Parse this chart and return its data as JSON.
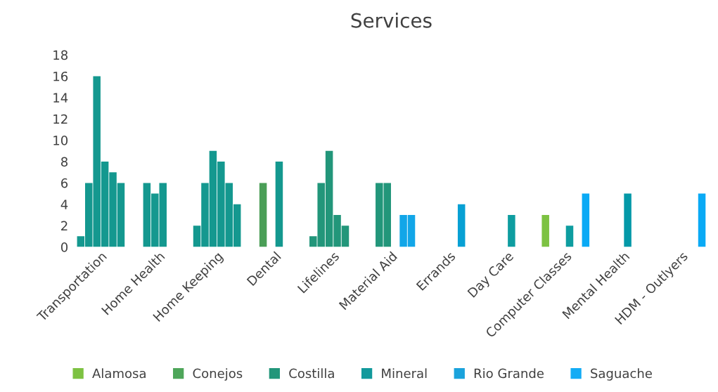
{
  "chart_data": {
    "type": "bar",
    "title": "Services",
    "categories": [
      "Transportation",
      "Home Health",
      "Home Keeping",
      "Dental",
      "Lifelines",
      "Material Aid",
      "Errands",
      "Day Care",
      "Computer Classes",
      "Mental Health",
      "HDM - Outlyers"
    ],
    "series": [
      {
        "name": "Alamosa",
        "color": "#7dc242",
        "values": [
          1,
          null,
          2,
          null,
          1,
          null,
          null,
          null,
          3,
          null,
          null
        ],
        "colors": [
          "#14988f",
          null,
          "#14988f",
          null,
          "#22967a",
          null,
          null,
          null,
          "#7dc242",
          null,
          null
        ]
      },
      {
        "name": "Conejos",
        "color": "#4ea65a",
        "values": [
          6,
          6,
          6,
          6,
          6,
          6,
          null,
          null,
          null,
          null,
          null
        ],
        "colors": [
          "#14988f",
          "#14988f",
          "#14988f",
          "#4a9e57",
          "#22967a",
          "#22967a",
          null,
          null,
          null,
          null,
          null
        ]
      },
      {
        "name": "Costilla",
        "color": "#22967a",
        "values": [
          16,
          5,
          9,
          null,
          9,
          6,
          null,
          null,
          null,
          null,
          null
        ],
        "colors": [
          "#14988f",
          "#14988f",
          "#14988f",
          null,
          "#22967a",
          "#22967a",
          null,
          null,
          null,
          null,
          null
        ]
      },
      {
        "name": "Mineral",
        "color": "#129a9c",
        "values": [
          8,
          6,
          8,
          8,
          3,
          null,
          null,
          3,
          2,
          5,
          null
        ],
        "colors": [
          "#14988f",
          "#14988f",
          "#14988f",
          "#14988f",
          "#22967a",
          null,
          null,
          "#0e9da0",
          "#0e9da0",
          "#0499a8",
          null
        ]
      },
      {
        "name": "Rio Grande",
        "color": "#1ba3dc",
        "values": [
          7,
          null,
          6,
          null,
          2,
          3,
          4,
          null,
          null,
          null,
          null
        ],
        "colors": [
          "#14988f",
          null,
          "#14988f",
          null,
          "#22967a",
          "#12a6e8",
          "#07a0d4",
          null,
          null,
          null,
          null
        ]
      },
      {
        "name": "Saguache",
        "color": "#13acf5",
        "values": [
          6,
          null,
          4,
          null,
          null,
          3,
          null,
          null,
          5,
          null,
          5
        ],
        "colors": [
          "#14988f",
          null,
          "#14988f",
          null,
          null,
          "#12a6e8",
          null,
          null,
          "#0aaaf5",
          null,
          "#0aaaf5"
        ]
      }
    ],
    "ylim": [
      0,
      18
    ],
    "yticks": [
      0,
      2,
      4,
      6,
      8,
      10,
      12,
      14,
      16,
      18
    ],
    "legend": "bottom",
    "marker": "square"
  }
}
